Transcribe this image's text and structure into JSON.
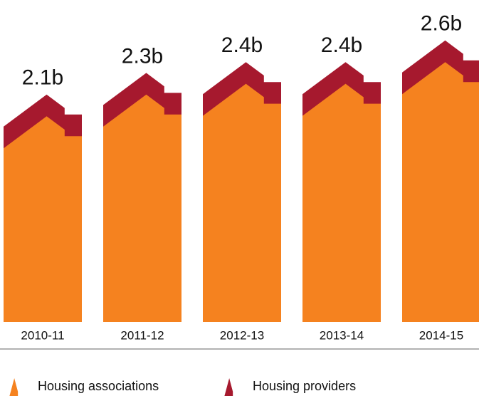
{
  "chart_data": {
    "type": "house-stack",
    "categories": [
      "2010-11",
      "2011-12",
      "2012-13",
      "2013-14",
      "2014-15"
    ],
    "series": [
      {
        "name": "Housing associations",
        "color": "#f5821f",
        "values": [
          1.9,
          2.1,
          2.2,
          2.2,
          2.4
        ]
      },
      {
        "name": "Housing providers",
        "color": "#a6192e",
        "values": [
          0.2,
          0.2,
          0.2,
          0.2,
          0.2
        ]
      }
    ],
    "total_labels": [
      "2.1b",
      "2.3b",
      "2.4b",
      "2.4b",
      "2.6b"
    ]
  }
}
